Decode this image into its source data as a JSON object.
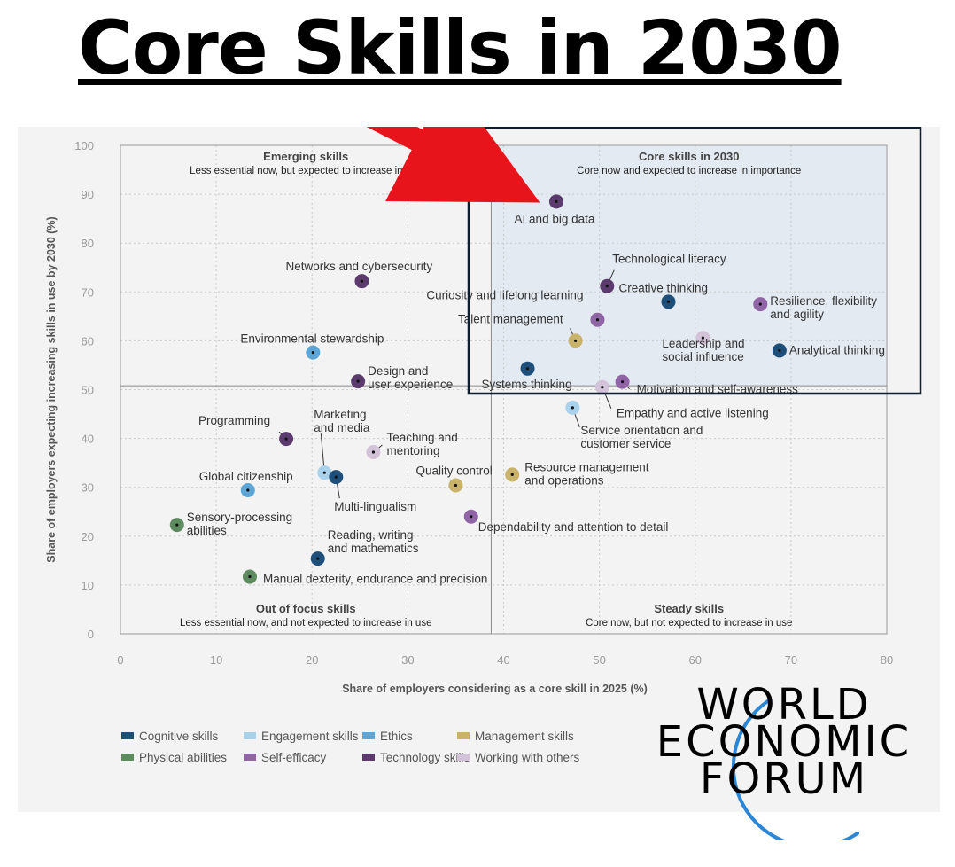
{
  "headline": "Core Skills in 2030",
  "logo": {
    "line1": "WORLD",
    "line2": "ECONOMIC",
    "line3": "FORUM"
  },
  "chart_data": {
    "type": "scatter",
    "xlabel": "Share of employers considering as a core skill in 2025 (%)",
    "ylabel": "Share of employers expecting increasing skills in use by 2030 (%)",
    "xlim": [
      0,
      80
    ],
    "ylim": [
      0,
      100
    ],
    "xticks": [
      0,
      10,
      20,
      30,
      40,
      50,
      60,
      70,
      80
    ],
    "yticks": [
      0,
      10,
      20,
      30,
      40,
      50,
      60,
      70,
      80,
      90,
      100
    ],
    "grid": true,
    "divider": {
      "x": 38.7,
      "y": 50.8
    },
    "quadrants": [
      {
        "title": "Emerging skills",
        "subtitle": "Less essential now, but expected to increase in use",
        "position": "top-left"
      },
      {
        "title": "Core skills in 2030",
        "subtitle": "Core now and expected to increase in importance",
        "position": "top-right"
      },
      {
        "title": "Out of focus skills",
        "subtitle": "Less essential now, and not expected to increase in use",
        "position": "bottom-left"
      },
      {
        "title": "Steady skills",
        "subtitle": "Core now, but not expected to increase in use",
        "position": "bottom-right"
      }
    ],
    "legend": {
      "placement": "bottom-left",
      "items": [
        {
          "name": "Cognitive skills",
          "color": "#1e4e7a"
        },
        {
          "name": "Engagement skills",
          "color": "#a9d2ea"
        },
        {
          "name": "Ethics",
          "color": "#5ba6d6"
        },
        {
          "name": "Management skills",
          "color": "#c9b269"
        },
        {
          "name": "Physical abilities",
          "color": "#5d8a5f"
        },
        {
          "name": "Self-efficacy",
          "color": "#9065a6"
        },
        {
          "name": "Technology skills",
          "color": "#5b3a6e"
        },
        {
          "name": "Working with others",
          "color": "#d3c3d9"
        }
      ]
    },
    "points": [
      {
        "label": [
          "AI and big data"
        ],
        "x": 45.5,
        "y": 88.5,
        "category": "Technology skills"
      },
      {
        "label": [
          "Technological literacy"
        ],
        "x": 50.8,
        "y": 71.2,
        "category": "Technology skills"
      },
      {
        "label": [
          "Creative thinking"
        ],
        "x": 57.2,
        "y": 68.0,
        "category": "Cognitive skills"
      },
      {
        "label": [
          "Resilience, flexibility",
          "and agility"
        ],
        "x": 66.8,
        "y": 67.5,
        "category": "Self-efficacy"
      },
      {
        "label": [
          "Curiosity and lifelong learning"
        ],
        "x": 49.8,
        "y": 64.3,
        "category": "Self-efficacy"
      },
      {
        "label": [
          "Talent management"
        ],
        "x": 47.5,
        "y": 60.0,
        "category": "Management skills"
      },
      {
        "label": [
          "Leadership and",
          "social influence"
        ],
        "x": 60.8,
        "y": 60.6,
        "category": "Working with others"
      },
      {
        "label": [
          "Analytical thinking"
        ],
        "x": 68.8,
        "y": 58.0,
        "category": "Cognitive skills"
      },
      {
        "label": [
          "Systems thinking"
        ],
        "x": 42.5,
        "y": 54.3,
        "category": "Cognitive skills"
      },
      {
        "label": [
          "Motivation and self-awareness"
        ],
        "x": 52.4,
        "y": 51.6,
        "category": "Self-efficacy"
      },
      {
        "label": [
          "Empathy and active listening"
        ],
        "x": 50.3,
        "y": 50.5,
        "category": "Working with others"
      },
      {
        "label": [
          "Service orientation and",
          "customer service"
        ],
        "x": 47.2,
        "y": 46.3,
        "category": "Engagement skills"
      },
      {
        "label": [
          "Networks and cybersecurity"
        ],
        "x": 25.2,
        "y": 72.2,
        "category": "Technology skills"
      },
      {
        "label": [
          "Environmental stewardship"
        ],
        "x": 20.1,
        "y": 57.6,
        "category": "Ethics"
      },
      {
        "label": [
          "Design and",
          "user experience"
        ],
        "x": 24.8,
        "y": 51.7,
        "category": "Technology skills"
      },
      {
        "label": [
          "Programming"
        ],
        "x": 17.3,
        "y": 39.9,
        "category": "Technology skills"
      },
      {
        "label": [
          "Marketing",
          "and media"
        ],
        "x": 21.3,
        "y": 33.0,
        "category": "Engagement skills"
      },
      {
        "label": [
          "Teaching and",
          "mentoring"
        ],
        "x": 26.4,
        "y": 37.2,
        "category": "Working with others"
      },
      {
        "label": [
          "Global citizenship"
        ],
        "x": 13.3,
        "y": 29.4,
        "category": "Ethics"
      },
      {
        "label": [
          "Multi-lingualism"
        ],
        "x": 22.5,
        "y": 32.1,
        "category": "Cognitive skills"
      },
      {
        "label": [
          "Quality control"
        ],
        "x": 35.0,
        "y": 30.4,
        "category": "Management skills"
      },
      {
        "label": [
          "Resource management",
          "and operations"
        ],
        "x": 40.9,
        "y": 32.6,
        "category": "Management skills"
      },
      {
        "label": [
          "Sensory-processing",
          "abilities"
        ],
        "x": 5.9,
        "y": 22.3,
        "category": "Physical abilities"
      },
      {
        "label": [
          "Dependability and attention to detail"
        ],
        "x": 36.6,
        "y": 24.0,
        "category": "Self-efficacy"
      },
      {
        "label": [
          "Reading, writing",
          "and mathematics"
        ],
        "x": 20.6,
        "y": 15.4,
        "category": "Cognitive skills"
      },
      {
        "label": [
          "Manual dexterity, endurance and precision"
        ],
        "x": 13.5,
        "y": 11.7,
        "category": "Physical abilities"
      }
    ]
  }
}
